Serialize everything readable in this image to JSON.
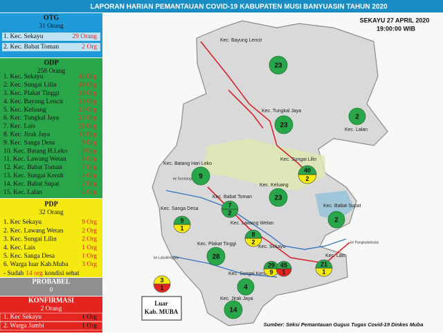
{
  "header": {
    "title": "LAPORAN   HARIAN PEMANTAUAN COVID-19 KABUPATEN MUSI BANYUASIN TAHUN 2020",
    "date": "SEKAYU 27 APRIL 2020",
    "time": "19:00:00 WIB"
  },
  "panels": [
    {
      "title": "OTG",
      "total": "31 Orang",
      "rows": [
        [
          "1. Kec. Sekayu",
          "29 Orang"
        ],
        [
          "2. Kec. Babat Toman",
          "2 Org"
        ]
      ]
    },
    {
      "title": "ODP",
      "total": "258 Orang",
      "rows": [
        [
          "1. Kec. Sekayu",
          "45 Org"
        ],
        [
          "2. Kec. Sungai Lilin",
          "40 Org"
        ],
        [
          "3. Kec. Plakat Tinggi",
          "28 Org"
        ],
        [
          "4. Kec. Bayung Lencir",
          "23 Org"
        ],
        [
          "5. Kec. Keluang",
          "23 Org"
        ],
        [
          "6. Kec. Tungkal Jaya",
          "23 Org"
        ],
        [
          "7. Kec. Lais",
          "21 Org"
        ],
        [
          "8. Kec. Jirak Jaya",
          "14 Org"
        ],
        [
          "9. Kec. Sanga Desa",
          "9 Org"
        ],
        [
          "10. Kec. Batang H.Leko",
          "9 Org"
        ],
        [
          "11. Kec. Lawang Wetan",
          "8 Org"
        ],
        [
          "12. Kec. Babat Toman",
          "7 Org"
        ],
        [
          "13. Kec. Sungai Keruh",
          "4 Org"
        ],
        [
          "14. Kec. Babat Supat",
          "2 Org"
        ],
        [
          "15. Kec. Lalan",
          "2 Org"
        ]
      ]
    },
    {
      "title": "PDP",
      "total": "32 Orang",
      "rows": [
        [
          "1. Kec Sekayu",
          "9 Org"
        ],
        [
          "2. Kec. Lawang Wetan",
          "2 Org"
        ],
        [
          "3. Kec. Sungai Lilin",
          "2 Org"
        ],
        [
          "4. Kec. Lais",
          "1 Org"
        ],
        [
          "5. Kec. Sanga Desa",
          "1 Org"
        ],
        [
          "6. Warga luar Kab.Muba",
          "3 Org"
        ]
      ],
      "note": [
        "- Sudah",
        "14 org",
        "kondisi sehat"
      ]
    },
    {
      "title": "PROBABEL",
      "total": "0",
      "rows": []
    },
    {
      "title": "KONFIRMASI",
      "total": "2 Orang",
      "rows": [
        [
          "1. Kec Sekayu",
          "1 Org"
        ],
        [
          "2. Warga Jambi",
          "1 Org"
        ]
      ]
    }
  ],
  "map": {
    "districts": [
      "Kec. Bayung Lencir",
      "Kec. Tungkal Jaya",
      "Kec. Lalan",
      "Kec. Batang Hari Leko",
      "Kec. Sungai Lilin",
      "Kec. Keluang",
      "Kec. Babat Toman",
      "Kec. Sanga Desa",
      "Kec. Babat Supat",
      "Kec. Lawang Wetan",
      "Kec. Plakat Tinggi",
      "Kec. Sekayu",
      "Kec. Lais",
      "Kec. Sungai Keruh",
      "Kec. Jirak Jaya"
    ],
    "roads": [
      "ke Sorolangun",
      "ke Lubuklinggau",
      "ke Pangkalanbalai"
    ],
    "markers": [
      {
        "top": 23
      },
      {
        "top": 2
      },
      {
        "top": 23
      },
      {
        "top": 40,
        "bottom": 2
      },
      {
        "top": 9
      },
      {
        "top": 23
      },
      {
        "top": 7,
        "bottom": 2
      },
      {
        "top": 2
      },
      {
        "top": 9,
        "bottom": 1
      },
      {
        "top": 8,
        "bottom": 2
      },
      {
        "top": 28
      },
      {
        "top": 29,
        "bottom": 9
      },
      {
        "top": 45,
        "bottom": 1
      },
      {
        "top": 21,
        "bottom": 1
      },
      {
        "top": 4
      },
      {
        "top": 14
      }
    ]
  },
  "legend": {
    "top": 3,
    "bottom": 1,
    "label": [
      "Luar",
      "Kab. MUBA"
    ]
  },
  "source": "Sumber: Seksi Pemantauan Gugus Tugas Covid-19 Dinkes Muba"
}
